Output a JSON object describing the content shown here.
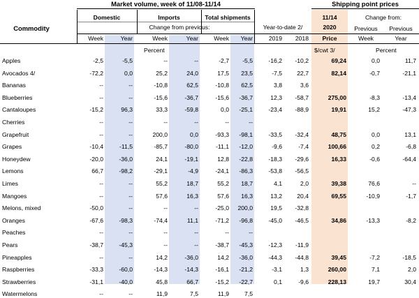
{
  "header": {
    "market_title": "Market volume, week of 11/08-11/14",
    "shipping_title": "Shipping point prices",
    "commodity_label": "Commodity",
    "domestic": "Domestic",
    "imports": "Imports",
    "total_shipments": "Total shipments",
    "change_from_previous": "Change from previous:",
    "year_to_date": "Year-to-date 2/",
    "col_week": "Week",
    "col_year": "Year",
    "col_2019": "2019",
    "col_2018": "2018",
    "price_date": "11/14",
    "price_year": "2020",
    "price_label": "Price",
    "change_from": "Change from:",
    "previous_week_1": "Previous",
    "previous_week_2": "Week",
    "previous_year_1": "Previous",
    "previous_year_2": "Year",
    "unit_percent_left": "Percent",
    "unit_price": "$/cwt 3/",
    "unit_percent_right": "Percent"
  },
  "rows": [
    {
      "name": "Apples",
      "dw": "-2,5",
      "dy": "-5,5",
      "iw": "--",
      "iy": "--",
      "tw": "-2,7",
      "ty": "-5,5",
      "y19": "-16,2",
      "y18": "-10,2",
      "price": "69,24",
      "pw": "0,0",
      "py": "11,7"
    },
    {
      "name": "Avocados 4/",
      "dw": "-72,2",
      "dy": "0,0",
      "iw": "25,2",
      "iy": "24,0",
      "tw": "17,5",
      "ty": "23,5",
      "y19": "-7,5",
      "y18": "22,7",
      "price": "82,14",
      "pw": "-0,7",
      "py": "-21,1"
    },
    {
      "name": "Bananas",
      "dw": "--",
      "dy": "--",
      "iw": "-10,8",
      "iy": "62,5",
      "tw": "-10,8",
      "ty": "62,5",
      "y19": "3,8",
      "y18": "3,6",
      "price": "",
      "pw": "",
      "py": ""
    },
    {
      "name": "Blueberries",
      "dw": "--",
      "dy": "--",
      "iw": "-15,6",
      "iy": "-36,7",
      "tw": "-15,6",
      "ty": "-36,7",
      "y19": "12,3",
      "y18": "-58,7",
      "price": "275,00",
      "pw": "-8,3",
      "py": "-13,4"
    },
    {
      "name": "Cantaloupes",
      "dw": "-15,2",
      "dy": "96,3",
      "iw": "33,3",
      "iy": "-59,8",
      "tw": "0,0",
      "ty": "-25,1",
      "y19": "-23,4",
      "y18": "-88,9",
      "price": "19,91",
      "pw": "15,2",
      "py": "-47,3"
    },
    {
      "name": "Cherries",
      "dw": "--",
      "dy": "--",
      "iw": "--",
      "iy": "--",
      "tw": "--",
      "ty": "--",
      "y19": "",
      "y18": "",
      "price": "",
      "pw": "",
      "py": ""
    },
    {
      "name": "Grapefruit",
      "dw": "--",
      "dy": "--",
      "iw": "200,0",
      "iy": "0,0",
      "tw": "-93,3",
      "ty": "-98,1",
      "y19": "-33,5",
      "y18": "-32,4",
      "price": "48,75",
      "pw": "0,0",
      "py": "13,1"
    },
    {
      "name": "Grapes",
      "dw": "-10,4",
      "dy": "-11,5",
      "iw": "-85,7",
      "iy": "-80,0",
      "tw": "-11,1",
      "ty": "-12,0",
      "y19": "-9,6",
      "y18": "-7,4",
      "price": "100,66",
      "pw": "0,2",
      "py": "-6,8"
    },
    {
      "name": "Honeydew",
      "dw": "-20,0",
      "dy": "-36,0",
      "iw": "24,1",
      "iy": "-19,1",
      "tw": "12,8",
      "ty": "-22,8",
      "y19": "-18,3",
      "y18": "-29,6",
      "price": "16,33",
      "pw": "-0,6",
      "py": "-64,4"
    },
    {
      "name": "Lemons",
      "dw": "66,7",
      "dy": "-98,2",
      "iw": "-29,1",
      "iy": "-4,9",
      "tw": "-24,1",
      "ty": "-86,3",
      "y19": "-53,8",
      "y18": "-56,5",
      "price": "",
      "pw": "",
      "py": ""
    },
    {
      "name": "Limes",
      "dw": "--",
      "dy": "--",
      "iw": "55,2",
      "iy": "18,7",
      "tw": "55,2",
      "ty": "18,7",
      "y19": "4,1",
      "y18": "2,0",
      "price": "39,38",
      "pw": "76,6",
      "py": "--"
    },
    {
      "name": "Mangoes",
      "dw": "--",
      "dy": "--",
      "iw": "57,6",
      "iy": "16,3",
      "tw": "57,6",
      "ty": "16,3",
      "y19": "13,2",
      "y18": "20,4",
      "price": "69,55",
      "pw": "-10,9",
      "py": "-1,7"
    },
    {
      "name": "Melons, mixed",
      "dw": "-50,0",
      "dy": "--",
      "iw": "--",
      "iy": "--",
      "tw": "-25,0",
      "ty": "200,0",
      "y19": "19,5",
      "y18": "-32,8",
      "price": "",
      "pw": "",
      "py": ""
    },
    {
      "name": "Oranges",
      "dw": "-67,6",
      "dy": "-98,3",
      "iw": "-74,4",
      "iy": "11,1",
      "tw": "-71,2",
      "ty": "-96,8",
      "y19": "-45,0",
      "y18": "-46,5",
      "price": "34,86",
      "pw": "-13,3",
      "py": "-8,2"
    },
    {
      "name": "Peaches",
      "dw": "--",
      "dy": "--",
      "iw": "--",
      "iy": "--",
      "tw": "--",
      "ty": "--",
      "y19": "",
      "y18": "",
      "price": "",
      "pw": "",
      "py": ""
    },
    {
      "name": "Pears",
      "dw": "-38,7",
      "dy": "-45,3",
      "iw": "--",
      "iy": "--",
      "tw": "-38,7",
      "ty": "-45,3",
      "y19": "-12,3",
      "y18": "-11,9",
      "price": "",
      "pw": "",
      "py": ""
    },
    {
      "name": "Pineapples",
      "dw": "--",
      "dy": "--",
      "iw": "14,2",
      "iy": "-36,0",
      "tw": "14,2",
      "ty": "-36,0",
      "y19": "-44,3",
      "y18": "-44,8",
      "price": "39,45",
      "pw": "-7,2",
      "py": "-18,5"
    },
    {
      "name": "Raspberries",
      "dw": "-33,3",
      "dy": "-60,0",
      "iw": "-14,3",
      "iy": "-14,3",
      "tw": "-16,1",
      "ty": "-21,2",
      "y19": "-3,1",
      "y18": "1,3",
      "price": "260,00",
      "pw": "7,1",
      "py": "2,0"
    },
    {
      "name": "Strawberries",
      "dw": "-31,1",
      "dy": "-40,0",
      "iw": "45,8",
      "iy": "66,7",
      "tw": "-15,2",
      "ty": "-22,7",
      "y19": "0,1",
      "y18": "-9,6",
      "price": "228,13",
      "pw": "19,7",
      "py": "30,4"
    },
    {
      "name": "Watermelons",
      "dw": "--",
      "dy": "--",
      "iw": "11,9",
      "iy": "7,5",
      "tw": "11,9",
      "ty": "7,5",
      "y19": "",
      "y18": "",
      "price": "",
      "pw": "",
      "py": ""
    }
  ],
  "colors": {
    "band_blue": "#d9e1f2",
    "band_peach": "#fbe3d2"
  }
}
